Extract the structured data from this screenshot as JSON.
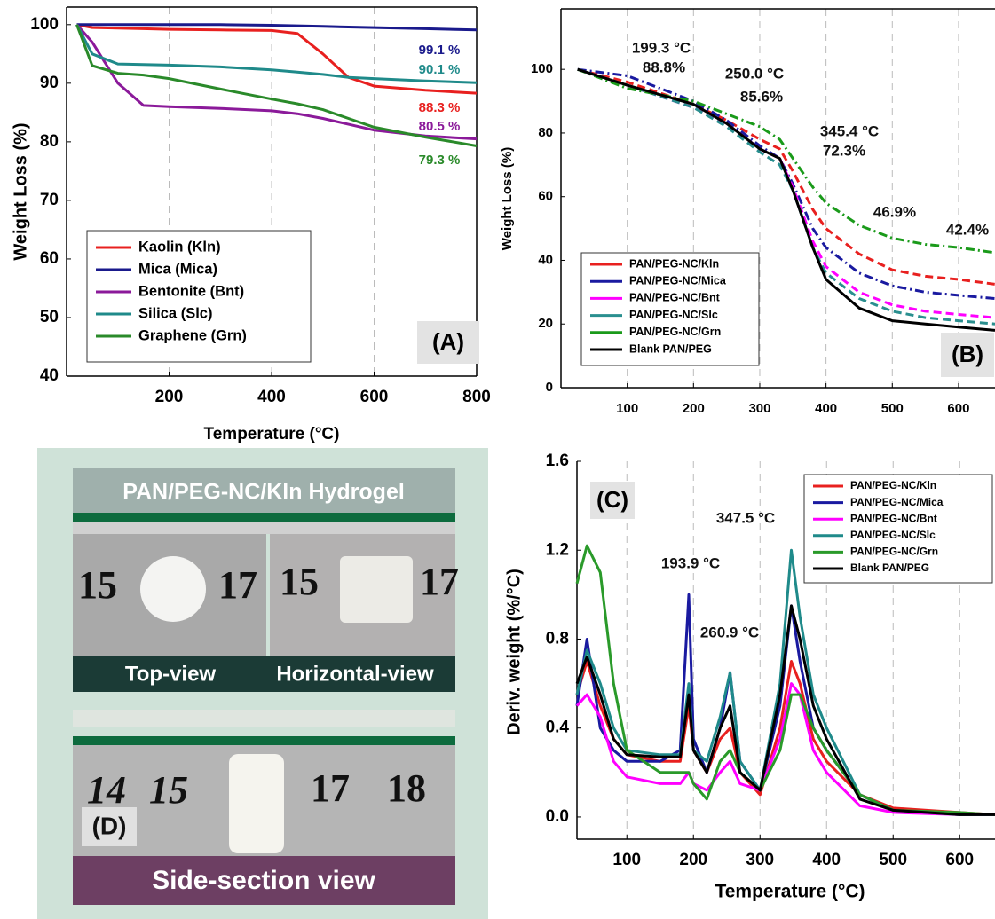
{
  "chart_data": [
    {
      "type": "line",
      "panel_label": "(A)",
      "xlabel": "Temperature (°C)",
      "ylabel": "Weight Loss (%)",
      "x": [
        20,
        50,
        100,
        150,
        200,
        300,
        400,
        450,
        500,
        550,
        600,
        700,
        800
      ],
      "xlim": [
        0,
        800
      ],
      "ylim": [
        40,
        103
      ],
      "xticks": [
        200,
        400,
        600,
        800
      ],
      "yticks": [
        40,
        50,
        60,
        70,
        80,
        90,
        100
      ],
      "grid": "x",
      "series": [
        {
          "name": "Kaolin (Kln)",
          "color": "#e8201f",
          "end_label": "88.3 %",
          "values": [
            100,
            99.5,
            99.4,
            99.3,
            99.2,
            99.1,
            99,
            98.5,
            95,
            91,
            89.5,
            88.8,
            88.3
          ]
        },
        {
          "name": "Mica (Mica)",
          "color": "#1a1a8c",
          "end_label": "99.1 %",
          "values": [
            100,
            100,
            100,
            100,
            100,
            100,
            99.9,
            99.8,
            99.7,
            99.6,
            99.5,
            99.3,
            99.1
          ]
        },
        {
          "name": "Bentonite (Bnt)",
          "color": "#8b1a9a",
          "end_label": "80.5 %",
          "values": [
            100,
            97,
            90,
            86.2,
            86,
            85.7,
            85.3,
            84.8,
            84,
            83,
            82,
            81,
            80.5
          ]
        },
        {
          "name": "Silica (Slc)",
          "color": "#1f8a8a",
          "end_label": "90.1 %",
          "values": [
            100,
            95,
            93.3,
            93.2,
            93.1,
            92.8,
            92.3,
            91.9,
            91.5,
            91,
            90.8,
            90.4,
            90.1
          ]
        },
        {
          "name": "Graphene (Grn)",
          "color": "#2a8a2a",
          "end_label": "79.3 %",
          "values": [
            100,
            93,
            91.7,
            91.4,
            90.8,
            89,
            87.3,
            86.5,
            85.5,
            84,
            82.5,
            80.8,
            79.3
          ]
        }
      ]
    },
    {
      "type": "line",
      "panel_label": "(B)",
      "ylabel": "Weight Loss (%)",
      "x": [
        25,
        100,
        200,
        250,
        300,
        330,
        350,
        380,
        400,
        450,
        500,
        550,
        600,
        655
      ],
      "xlim": [
        0,
        655
      ],
      "ylim": [
        0,
        119
      ],
      "xticks": [
        100,
        200,
        300,
        400,
        500,
        600
      ],
      "yticks": [
        0,
        20,
        40,
        60,
        80,
        100
      ],
      "grid": "x",
      "annotations": [
        "199.3 °C",
        "88.8%",
        "250.0 °C",
        "85.6%",
        "345.4 °C",
        "72.3%",
        "46.9%",
        "42.4%"
      ],
      "series": [
        {
          "name": "PAN/PEG-NC/Kln",
          "color": "#e8201f",
          "linestyle": "dashed",
          "values": [
            100,
            96,
            89,
            84,
            78,
            75,
            68,
            56,
            50,
            42,
            37,
            35,
            34,
            32.5
          ]
        },
        {
          "name": "PAN/PEG-NC/Mica",
          "color": "#1a1aa0",
          "linestyle": "dashdot",
          "values": [
            100,
            98,
            90,
            84,
            76,
            72,
            64,
            50,
            44,
            36,
            32,
            30,
            29,
            28
          ]
        },
        {
          "name": "PAN/PEG-NC/Bnt",
          "color": "#ff00ff",
          "linestyle": "dashed",
          "values": [
            100,
            95,
            88,
            83,
            75,
            72,
            63,
            46,
            38,
            30,
            26,
            24,
            23,
            22
          ]
        },
        {
          "name": "PAN/PEG-NC/Slc",
          "color": "#2a8f8f",
          "linestyle": "dashed",
          "values": [
            100,
            95,
            88,
            82,
            74,
            70,
            62,
            44,
            36,
            28,
            24,
            22,
            21,
            20
          ]
        },
        {
          "name": "PAN/PEG-NC/Grn",
          "color": "#1a9a1a",
          "linestyle": "dashdot",
          "values": [
            100,
            94,
            90,
            86,
            82,
            78,
            72,
            63,
            58,
            51,
            47,
            45,
            44,
            42.4
          ]
        },
        {
          "name": "Blank PAN/PEG",
          "color": "#000000",
          "linestyle": "solid",
          "values": [
            100,
            95,
            89,
            83,
            75,
            72,
            62,
            44,
            34,
            25,
            21,
            20,
            19,
            18
          ]
        }
      ]
    },
    {
      "type": "line",
      "panel_label": "(C)",
      "xlabel": "Temperature (°C)",
      "ylabel": "Deriv. weight (%/°C)",
      "x": [
        25,
        40,
        60,
        80,
        100,
        150,
        180,
        193,
        200,
        220,
        240,
        255,
        270,
        300,
        330,
        347,
        360,
        380,
        400,
        450,
        500,
        600,
        653
      ],
      "xlim": [
        25,
        653
      ],
      "ylim": [
        -0.1,
        1.6
      ],
      "xticks": [
        100,
        200,
        300,
        400,
        500,
        600
      ],
      "yticks": [
        {
          "value": 0,
          "label": "0.0"
        },
        0.4,
        0.8,
        1.2,
        1.6
      ],
      "grid": "x",
      "annotations": [
        "193.9 °C",
        "260.9 °C",
        "347.5 °C"
      ],
      "series": [
        {
          "name": "PAN/PEG-NC/Kln",
          "color": "#e8201f",
          "values": [
            0.55,
            0.7,
            0.5,
            0.35,
            0.28,
            0.25,
            0.25,
            0.5,
            0.3,
            0.2,
            0.35,
            0.4,
            0.2,
            0.1,
            0.4,
            0.7,
            0.6,
            0.35,
            0.25,
            0.1,
            0.04,
            0.02,
            0.01
          ]
        },
        {
          "name": "PAN/PEG-NC/Mica",
          "color": "#1a1aa0",
          "values": [
            0.5,
            0.8,
            0.4,
            0.3,
            0.25,
            0.25,
            0.3,
            1.0,
            0.35,
            0.2,
            0.4,
            0.65,
            0.25,
            0.12,
            0.5,
            0.95,
            0.7,
            0.4,
            0.3,
            0.1,
            0.03,
            0.01,
            0.01
          ]
        },
        {
          "name": "PAN/PEG-NC/Bnt",
          "color": "#ff00ff",
          "values": [
            0.5,
            0.55,
            0.45,
            0.25,
            0.18,
            0.15,
            0.15,
            0.2,
            0.15,
            0.12,
            0.2,
            0.25,
            0.15,
            0.12,
            0.35,
            0.6,
            0.55,
            0.3,
            0.2,
            0.05,
            0.02,
            0.01,
            0.01
          ]
        },
        {
          "name": "PAN/PEG-NC/Slc",
          "color": "#1f8a8a",
          "values": [
            0.55,
            0.75,
            0.6,
            0.4,
            0.3,
            0.28,
            0.28,
            0.6,
            0.3,
            0.25,
            0.45,
            0.65,
            0.25,
            0.12,
            0.6,
            1.2,
            0.9,
            0.55,
            0.4,
            0.1,
            0.03,
            0.01,
            0.01
          ]
        },
        {
          "name": "PAN/PEG-NC/Grn",
          "color": "#2a9a2a",
          "values": [
            1.05,
            1.22,
            1.1,
            0.6,
            0.3,
            0.2,
            0.2,
            0.2,
            0.15,
            0.08,
            0.25,
            0.3,
            0.2,
            0.12,
            0.3,
            0.55,
            0.55,
            0.4,
            0.3,
            0.1,
            0.03,
            0.02,
            0.01
          ]
        },
        {
          "name": "Blank PAN/PEG",
          "color": "#000000",
          "values": [
            0.6,
            0.72,
            0.55,
            0.35,
            0.28,
            0.27,
            0.27,
            0.55,
            0.3,
            0.2,
            0.4,
            0.5,
            0.2,
            0.12,
            0.55,
            0.95,
            0.8,
            0.5,
            0.35,
            0.08,
            0.03,
            0.01,
            0.01
          ]
        }
      ]
    }
  ],
  "photo": {
    "title": "PAN/PEG-NC/Kln Hydrogel",
    "panel_label": "(D)",
    "captions": [
      "Top-view",
      "Horizontal-view",
      "Side-section view"
    ],
    "ruler_labels": [
      "15",
      "17",
      "15",
      "17",
      "14",
      "15",
      "17",
      "18"
    ]
  }
}
